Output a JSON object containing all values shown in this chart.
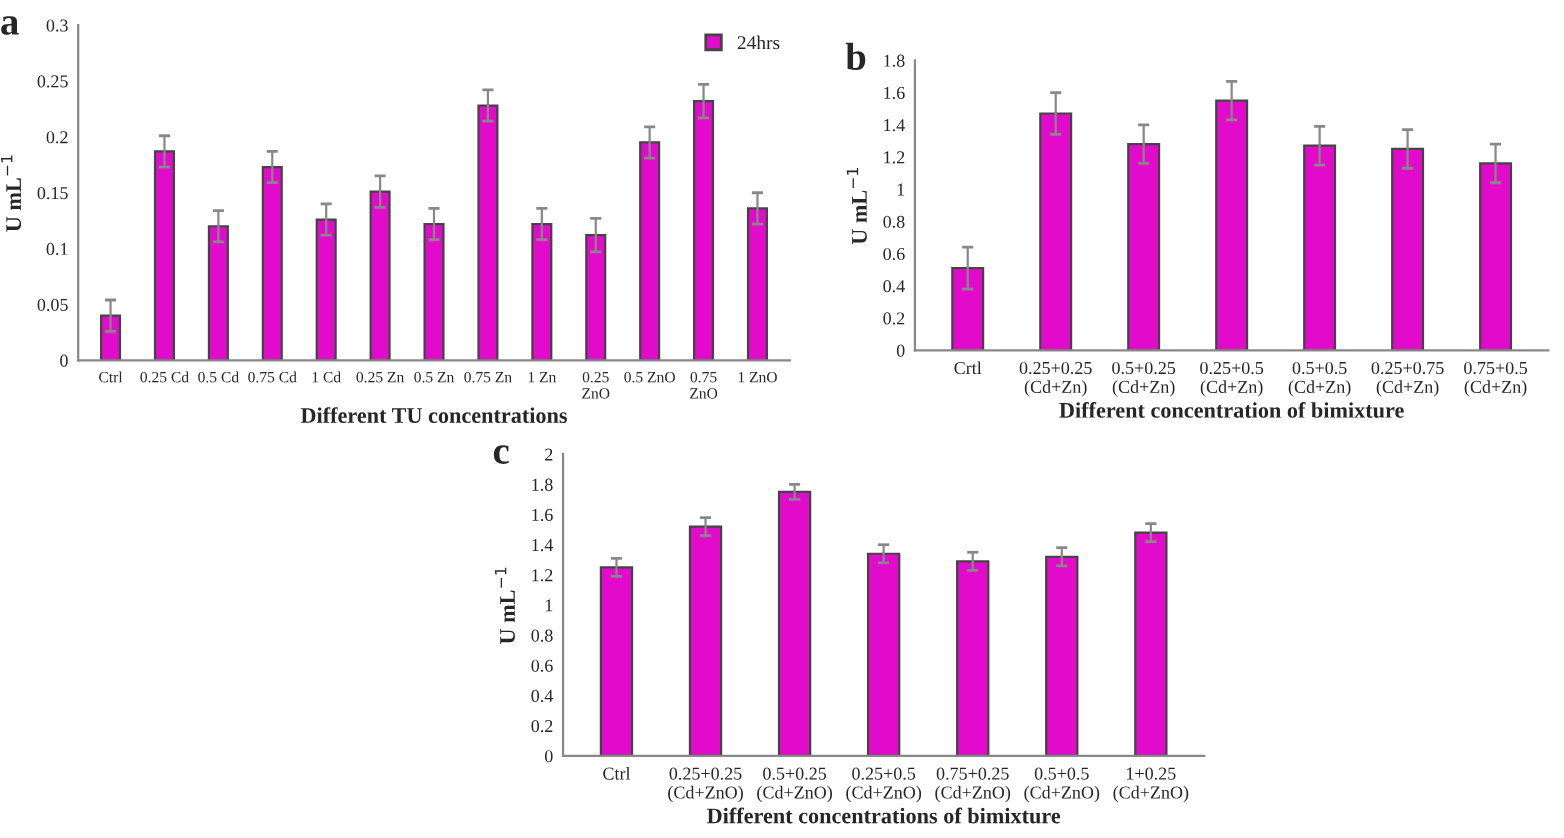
{
  "chart_data": [
    {
      "type": "bar",
      "title": "a",
      "xlabel": "Different TU concentrations",
      "ylabel": "U mL$^{−1}$",
      "categories": [
        "Ctrl",
        "0.25 Cd",
        "0.5 Cd",
        "0.75 Cd",
        "1 Cd",
        "0.25 Zn",
        "0.5 Zn",
        "0.75 Zn",
        "1 Zn",
        "0.25\nZnO",
        "0.5 ZnO",
        "0.75\nZnO",
        "1 ZnO"
      ],
      "series": [
        {
          "name": "24hrs",
          "color": "#e20bcb",
          "values": [
            0.04,
            0.187,
            0.12,
            0.173,
            0.126,
            0.151,
            0.122,
            0.228,
            0.122,
            0.112,
            0.195,
            0.232,
            0.136
          ],
          "errors": [
            0.014,
            0.014,
            0.014,
            0.014,
            0.014,
            0.014,
            0.014,
            0.014,
            0.014,
            0.015,
            0.014,
            0.015,
            0.014
          ]
        }
      ],
      "ylim": [
        0,
        0.3
      ],
      "yticks": [
        0,
        0.05,
        0.1,
        0.15,
        0.2,
        0.25,
        0.3
      ],
      "legend": "top right",
      "grid": false
    },
    {
      "type": "bar",
      "title": "b",
      "xlabel": "Different concentration of bimixture",
      "ylabel": "U mL$^{−1}$",
      "categories": [
        "Crtl",
        "0.25+0.25\n(Cd+Zn)",
        "0.5+0.25\n(Cd+Zn)",
        "0.25+0.5\n(Cd+Zn)",
        "0.5+0.5\n(Cd+Zn)",
        "0.25+0.75\n(Cd+Zn)",
        "0.75+0.5\n(Cd+Zn)"
      ],
      "series": [
        {
          "color": "#e20bcb",
          "values": [
            0.51,
            1.47,
            1.28,
            1.55,
            1.27,
            1.25,
            1.16
          ],
          "errors": [
            0.13,
            0.13,
            0.12,
            0.12,
            0.12,
            0.12,
            0.12
          ]
        }
      ],
      "ylim": [
        0,
        1.8
      ],
      "yticks": [
        0,
        0.2,
        0.4,
        0.6,
        0.8,
        1,
        1.2,
        1.4,
        1.6,
        1.8
      ],
      "grid": false
    },
    {
      "type": "bar",
      "title": "c",
      "xlabel": "Different concentrations of bimixture",
      "ylabel": "U mL$^{−1}$",
      "categories": [
        "Ctrl",
        "0.25+0.25\n(Cd+ZnO)",
        "0.5+0.25\n(Cd+ZnO)",
        "0.25+0.5\n(Cd+ZnO)",
        "0.75+0.25\n(Cd+ZnO)",
        "0.5+0.5\n(Cd+ZnO)",
        "1+0.25\n(Cd+ZnO)"
      ],
      "series": [
        {
          "color": "#e20bcb",
          "values": [
            1.25,
            1.52,
            1.75,
            1.34,
            1.29,
            1.32,
            1.48
          ],
          "errors": [
            0.06,
            0.06,
            0.05,
            0.06,
            0.06,
            0.06,
            0.06
          ]
        }
      ],
      "ylim": [
        0,
        2
      ],
      "yticks": [
        0,
        0.2,
        0.4,
        0.6,
        0.8,
        1,
        1.2,
        1.4,
        1.6,
        1.8,
        2
      ],
      "grid": false
    }
  ]
}
